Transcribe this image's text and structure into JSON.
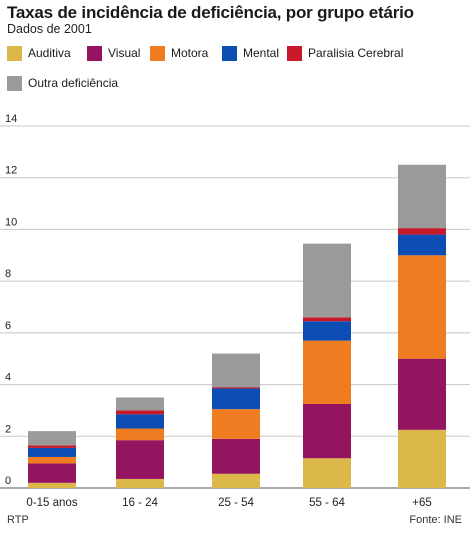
{
  "header": {
    "title": "Taxas de incidência de deficiência, por grupo etário",
    "subtitle": "Dados de 2001"
  },
  "footer": {
    "source_left": "RTP",
    "source_right": "Fonte: INE"
  },
  "chart_data": {
    "type": "bar",
    "stacked": true,
    "title": "Taxas de incidência de deficiência, por grupo etário",
    "subtitle": "Dados de 2001",
    "xlabel": "",
    "ylabel": "",
    "ylim": [
      0,
      14
    ],
    "yticks": [
      0,
      2,
      4,
      6,
      8,
      10,
      12,
      14
    ],
    "grid": true,
    "legend_position": "top",
    "categories": [
      "0-15 anos",
      "16 - 24",
      "25 - 54",
      "55 - 64",
      "+65"
    ],
    "series": [
      {
        "name": "Auditiva",
        "color": "#dcb84a",
        "values": [
          0.2,
          0.35,
          0.55,
          1.15,
          2.25
        ]
      },
      {
        "name": "Visual",
        "color": "#94145f",
        "values": [
          0.75,
          1.5,
          1.35,
          2.1,
          2.75
        ]
      },
      {
        "name": "Motora",
        "color": "#f07c22",
        "values": [
          0.25,
          0.45,
          1.15,
          2.45,
          4.0
        ]
      },
      {
        "name": "Mental",
        "color": "#0b4db3",
        "values": [
          0.35,
          0.55,
          0.8,
          0.75,
          0.8
        ]
      },
      {
        "name": "Paralisia Cerebral",
        "color": "#c8192b",
        "values": [
          0.1,
          0.15,
          0.05,
          0.15,
          0.25
        ]
      },
      {
        "name": "Outra deficiência",
        "color": "#9a9a9a",
        "values": [
          0.55,
          0.5,
          1.3,
          2.85,
          2.45
        ]
      }
    ]
  }
}
